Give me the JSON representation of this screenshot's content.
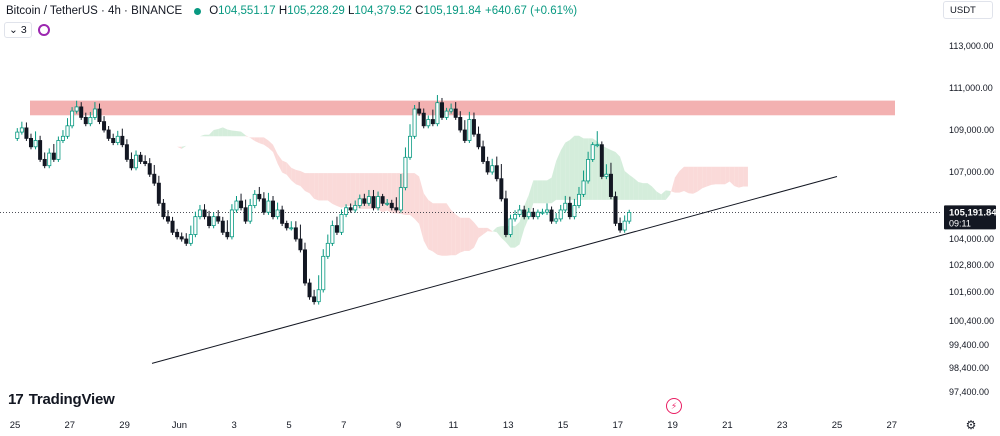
{
  "header": {
    "symbol": "Bitcoin / TetherUS · 4h · BINANCE",
    "o_label": "O",
    "o_value": "104,551.17",
    "h_label": "H",
    "h_value": "105,228.29",
    "l_label": "L",
    "l_value": "104,379.52",
    "c_label": "C",
    "c_value": "105,191.84",
    "change": "+640.67 (+0.61%)"
  },
  "indicators": {
    "count": "3"
  },
  "currency": {
    "selected": "USDT"
  },
  "branding": {
    "logo_text": "TradingView",
    "logo_mark": "17"
  },
  "price_badge": {
    "price": "105,191.84",
    "countdown": "09:11"
  },
  "colors": {
    "up": "#089981",
    "down": "#131722",
    "resistance_zone": "#f1a3a3",
    "cloud_bull": "#c9e9d2",
    "cloud_bear": "#f9d1cf",
    "trendline": "#131722",
    "last_price_line": "#131722",
    "badge_bg": "#131722"
  },
  "chart_data": {
    "type": "candlestick",
    "timeframe": "4h",
    "ylim": [
      97000,
      113800
    ],
    "y_ticks": [
      113000,
      111000,
      109000,
      107000,
      104000,
      102800,
      101600,
      100400,
      99400,
      98400,
      97400
    ],
    "y_tick_labels": [
      "113,000.00",
      "111,000.00",
      "109,000.00",
      "107,000.00",
      "104,000.00",
      "102,800.00",
      "101,600.00",
      "100,400.00",
      "99,400.00",
      "98,400.00",
      "97,400.00"
    ],
    "x_ticks": [
      "25",
      "27",
      "29",
      "Jun",
      "3",
      "5",
      "7",
      "9",
      "11",
      "13",
      "15",
      "17",
      "19",
      "21",
      "23",
      "25",
      "27"
    ],
    "last_price": 105191.84,
    "resistance_zone": {
      "low": 109700,
      "high": 110400
    },
    "trendline": {
      "start": {
        "date": "2025-05-30",
        "price": 98600
      },
      "end": {
        "date": "2025-06-24",
        "price": 106800
      }
    },
    "candles_per_day": 6,
    "first_candle": "2025-05-25",
    "closes": [
      108900,
      109100,
      108600,
      108200,
      108500,
      107600,
      107300,
      107900,
      107600,
      108500,
      108700,
      109200,
      109900,
      110100,
      109600,
      109300,
      109600,
      110000,
      109400,
      109000,
      108600,
      108400,
      108700,
      108300,
      107600,
      107200,
      107800,
      107500,
      107400,
      106900,
      106500,
      105600,
      105000,
      104800,
      104300,
      104100,
      104000,
      103800,
      104200,
      105000,
      105300,
      105000,
      104600,
      105000,
      104800,
      104300,
      104100,
      105300,
      105700,
      105400,
      104800,
      105500,
      106000,
      105800,
      105200,
      105700,
      105000,
      105300,
      104700,
      104500,
      104500,
      104000,
      103500,
      102000,
      101400,
      101200,
      101700,
      103200,
      103800,
      104600,
      104300,
      105100,
      105400,
      105300,
      105500,
      105800,
      105600,
      105900,
      105400,
      105900,
      105600,
      105600,
      105400,
      105300,
      106300,
      107700,
      108700,
      110000,
      109800,
      109200,
      109500,
      109300,
      110300,
      109600,
      109900,
      110000,
      109600,
      109000,
      108500,
      109500,
      108800,
      108200,
      107500,
      107000,
      107300,
      106700,
      105800,
      104200,
      104900,
      105100,
      105300,
      105000,
      105200,
      105000,
      105200,
      105200,
      105300,
      104800,
      104900,
      105300,
      105600,
      105000,
      105500,
      106000,
      106600,
      107600,
      108300,
      108300,
      106800,
      106900,
      105900,
      104700,
      104400,
      104800,
      105190
    ]
  }
}
